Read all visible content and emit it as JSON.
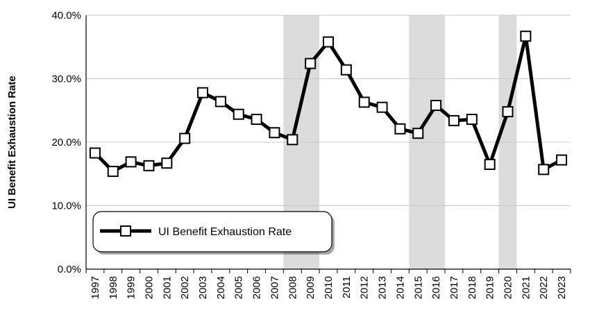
{
  "chart_data": {
    "type": "line",
    "title": "",
    "xlabel": "",
    "ylabel": "UI Benefit Exhaustion Rate",
    "ylim": [
      0,
      40
    ],
    "yticks": [
      "0.0%",
      "10.0%",
      "20.0%",
      "30.0%",
      "40.0%"
    ],
    "categories": [
      "1997",
      "1998",
      "1999",
      "2000",
      "2001",
      "2002",
      "2003",
      "2004",
      "2005",
      "2006",
      "2007",
      "2008",
      "2009",
      "2010",
      "2011",
      "2012",
      "2013",
      "2014",
      "2015",
      "2016",
      "2017",
      "2018",
      "2019",
      "2020",
      "2021",
      "2022",
      "2023"
    ],
    "series": [
      {
        "name": "UI Benefit Exhaustion Rate",
        "values": [
          18.3,
          15.4,
          16.9,
          16.3,
          16.7,
          20.6,
          27.8,
          26.4,
          24.4,
          23.6,
          21.5,
          20.4,
          32.4,
          35.8,
          31.4,
          26.3,
          25.5,
          22.1,
          21.4,
          25.8,
          23.4,
          23.6,
          16.5,
          24.8,
          36.7,
          15.7,
          17.2
        ]
      }
    ],
    "shaded_periods": [
      [
        "2008",
        "2009"
      ],
      [
        "2015",
        "2016"
      ],
      [
        "2020",
        "2020"
      ]
    ],
    "grid": true,
    "legend_position": "bottom-left"
  },
  "colors": {
    "line": "#000000",
    "marker_fill": "#ffffff",
    "grid": "#c8c8c8",
    "shading": "#dcdcdc",
    "axis": "#000000"
  }
}
